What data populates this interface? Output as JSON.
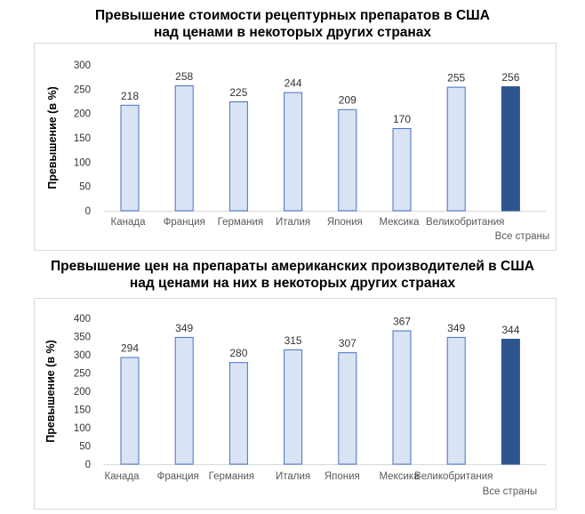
{
  "chart_data": [
    {
      "type": "bar",
      "title_lines": [
        "Превышение стоимости рецептурных препаратов в США",
        "над ценами в некоторых других странах"
      ],
      "ylabel": "Превышение (в %)",
      "xlabel": "",
      "ylim": [
        0,
        300
      ],
      "yticks": [
        0,
        50,
        100,
        150,
        200,
        250,
        300
      ],
      "categories": [
        "Канада",
        "Франция",
        "Германия",
        "Италия",
        "Япония",
        "Мексика",
        "Великобритания",
        "Все страны"
      ],
      "values": [
        218,
        258,
        225,
        244,
        209,
        170,
        255,
        256
      ],
      "grid": false,
      "colors": {
        "bar": "#dae3f3",
        "bar_border": "#4472c4",
        "highlight": "#2e5590"
      }
    },
    {
      "type": "bar",
      "title_lines": [
        "Превышение цен на препараты американских производителей в США",
        "над ценами на них в некоторых других странах"
      ],
      "ylabel": "Превышение (в %)",
      "xlabel": "",
      "ylim": [
        0,
        400
      ],
      "yticks": [
        0,
        50,
        100,
        150,
        200,
        250,
        300,
        350,
        400
      ],
      "categories": [
        "Канада",
        "Франция",
        "Германия",
        "Италия",
        "Япония",
        "Мексика",
        "Великобритания",
        "Все страны"
      ],
      "values": [
        294,
        349,
        280,
        315,
        307,
        367,
        349,
        344
      ],
      "grid": false,
      "colors": {
        "bar": "#dae3f3",
        "bar_border": "#4472c4",
        "highlight": "#2e5590"
      }
    }
  ]
}
